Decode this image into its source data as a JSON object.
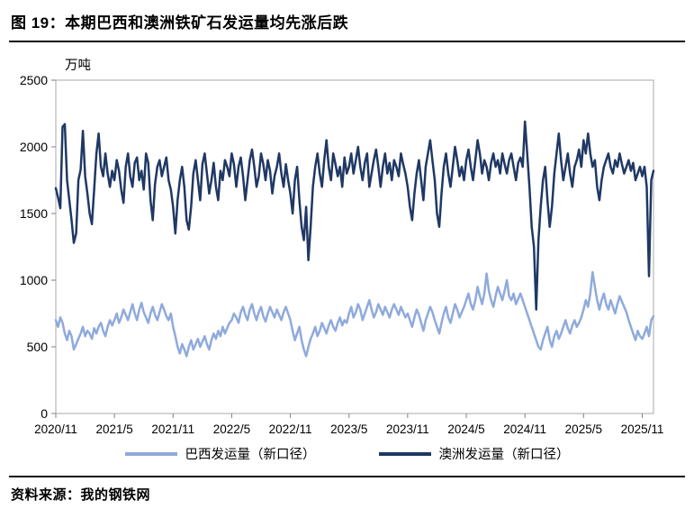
{
  "title": "图 19：本期巴西和澳洲铁矿石发运量均先涨后跌",
  "source": "资料来源：我的钢铁网",
  "chart_data": {
    "type": "line",
    "title": "本期巴西和澳洲铁矿石发运量均先涨后跌",
    "ylabel": "万吨",
    "xlabel": "",
    "ylim": [
      0,
      2500
    ],
    "yticks": [
      0,
      500,
      1000,
      1500,
      2000,
      2500
    ],
    "xtick_labels": [
      "2020/11",
      "2021/5",
      "2021/11",
      "2022/5",
      "2022/11",
      "2023/5",
      "2023/11",
      "2024/5",
      "2024/11",
      "2025/5",
      "2025/11"
    ],
    "xtick_step": 26,
    "grid": false,
    "legend_position": "bottom",
    "frame_color": "#aaaaaa",
    "tick_color": "#808080",
    "series": [
      {
        "name": "巴西发运量（新口径）",
        "color": "#8FAADC",
        "values": [
          700,
          650,
          720,
          680,
          600,
          550,
          620,
          580,
          480,
          520,
          560,
          600,
          650,
          580,
          620,
          600,
          560,
          640,
          600,
          650,
          680,
          620,
          580,
          650,
          700,
          660,
          700,
          750,
          680,
          720,
          780,
          740,
          700,
          760,
          820,
          750,
          700,
          780,
          830,
          760,
          720,
          680,
          750,
          800,
          740,
          700,
          760,
          820,
          780,
          730,
          700,
          750,
          650,
          580,
          500,
          450,
          520,
          480,
          430,
          500,
          550,
          480,
          520,
          560,
          500,
          540,
          580,
          520,
          480,
          550,
          600,
          560,
          620,
          580,
          650,
          600,
          640,
          680,
          700,
          750,
          720,
          680,
          760,
          800,
          740,
          700,
          780,
          820,
          750,
          700,
          760,
          800,
          730,
          690,
          750,
          800,
          760,
          720,
          780,
          740,
          700,
          760,
          800,
          750,
          700,
          620,
          550,
          600,
          650,
          550,
          480,
          430,
          500,
          560,
          600,
          650,
          580,
          620,
          680,
          640,
          600,
          660,
          700,
          650,
          620,
          680,
          720,
          660,
          700,
          680,
          750,
          800,
          720,
          760,
          820,
          780,
          700,
          750,
          800,
          850,
          780,
          720,
          760,
          820,
          780,
          740,
          800,
          760,
          720,
          780,
          820,
          780,
          740,
          800,
          760,
          720,
          750,
          700,
          650,
          720,
          780,
          740,
          680,
          620,
          700,
          750,
          800,
          760,
          700,
          650,
          600,
          680,
          750,
          800,
          720,
          680,
          750,
          820,
          780,
          720,
          760,
          800,
          850,
          900,
          820,
          780,
          850,
          950,
          880,
          820,
          900,
          1050,
          920,
          850,
          800,
          880,
          950,
          900,
          850,
          920,
          1000,
          880,
          850,
          900,
          820,
          860,
          900,
          850,
          800,
          750,
          700,
          650,
          600,
          550,
          500,
          480,
          550,
          600,
          650,
          550,
          500,
          580,
          620,
          560,
          600,
          650,
          700,
          640,
          600,
          660,
          700,
          650,
          680,
          720,
          780,
          850,
          800,
          900,
          1060,
          950,
          850,
          780,
          850,
          900,
          820,
          780,
          850,
          800,
          750,
          820,
          880,
          840,
          800,
          760,
          700,
          650,
          600,
          550,
          620,
          580,
          560,
          600,
          650,
          580,
          700,
          730
        ]
      },
      {
        "name": "澳洲发运量（新口径）",
        "color": "#1F3864",
        "values": [
          1690,
          1620,
          1540,
          2150,
          2170,
          1750,
          1600,
          1450,
          1280,
          1350,
          1750,
          1830,
          2120,
          1780,
          1650,
          1500,
          1420,
          1680,
          1950,
          2100,
          1850,
          1780,
          1950,
          1800,
          1700,
          1820,
          1750,
          1900,
          1820,
          1680,
          1580,
          1850,
          1950,
          1780,
          1700,
          1880,
          1920,
          1750,
          1820,
          1680,
          1950,
          1880,
          1600,
          1450,
          1720,
          1850,
          1900,
          1780,
          1850,
          1920,
          1750,
          1680,
          1550,
          1350,
          1600,
          1750,
          1850,
          1700,
          1450,
          1380,
          1550,
          1800,
          1900,
          1750,
          1600,
          1870,
          1950,
          1800,
          1650,
          1750,
          1880,
          1700,
          1600,
          1820,
          1750,
          1900,
          1850,
          1780,
          1950,
          1870,
          1700,
          1850,
          1920,
          1780,
          1600,
          1750,
          1900,
          1980,
          1850,
          1700,
          1780,
          1950,
          1870,
          1750,
          1900,
          1820,
          1650,
          1780,
          1850,
          1950,
          1800,
          1700,
          1870,
          1750,
          1650,
          1500,
          1750,
          1850,
          1600,
          1400,
          1300,
          1550,
          1150,
          1400,
          1700,
          1850,
          1950,
          1800,
          1700,
          1900,
          2050,
          1850,
          1750,
          1950,
          1870,
          1780,
          1850,
          1700,
          1920,
          1800,
          1850,
          1950,
          1800,
          1900,
          2000,
          1850,
          1750,
          1880,
          1950,
          1700,
          1800,
          1900,
          1980,
          1850,
          1700,
          1850,
          1950,
          1800,
          1880,
          1750,
          1900,
          1850,
          1780,
          1950,
          1870,
          1800,
          1700,
          1550,
          1450,
          1650,
          1800,
          1900,
          1750,
          1600,
          1850,
          1950,
          2050,
          1900,
          1750,
          1500,
          1400,
          1650,
          1850,
          1950,
          1800,
          1700,
          1850,
          2000,
          1900,
          1780,
          1850,
          1750,
          1900,
          1980,
          1850,
          1750,
          1900,
          2050,
          1950,
          1800,
          1900,
          1850,
          1750,
          1880,
          1950,
          1850,
          1900,
          1800,
          1950,
          1870,
          1800,
          1900,
          1950,
          1850,
          1750,
          1880,
          1920,
          1850,
          2190,
          1950,
          1700,
          1400,
          1250,
          780,
          1300,
          1550,
          1750,
          1850,
          1600,
          1400,
          1550,
          1800,
          1950,
          2100,
          1900,
          1750,
          1850,
          1950,
          1800,
          1700,
          1850,
          1900,
          1980,
          1850,
          2050,
          1950,
          2100,
          1950,
          1850,
          1900,
          1700,
          1600,
          1750,
          1850,
          1900,
          1950,
          1850,
          1800,
          1900,
          1850,
          1950,
          1870,
          1800,
          1850,
          1900,
          1820,
          1880,
          1750,
          1800,
          1850,
          1780,
          1850,
          1700,
          1030,
          1750,
          1820
        ]
      }
    ]
  }
}
